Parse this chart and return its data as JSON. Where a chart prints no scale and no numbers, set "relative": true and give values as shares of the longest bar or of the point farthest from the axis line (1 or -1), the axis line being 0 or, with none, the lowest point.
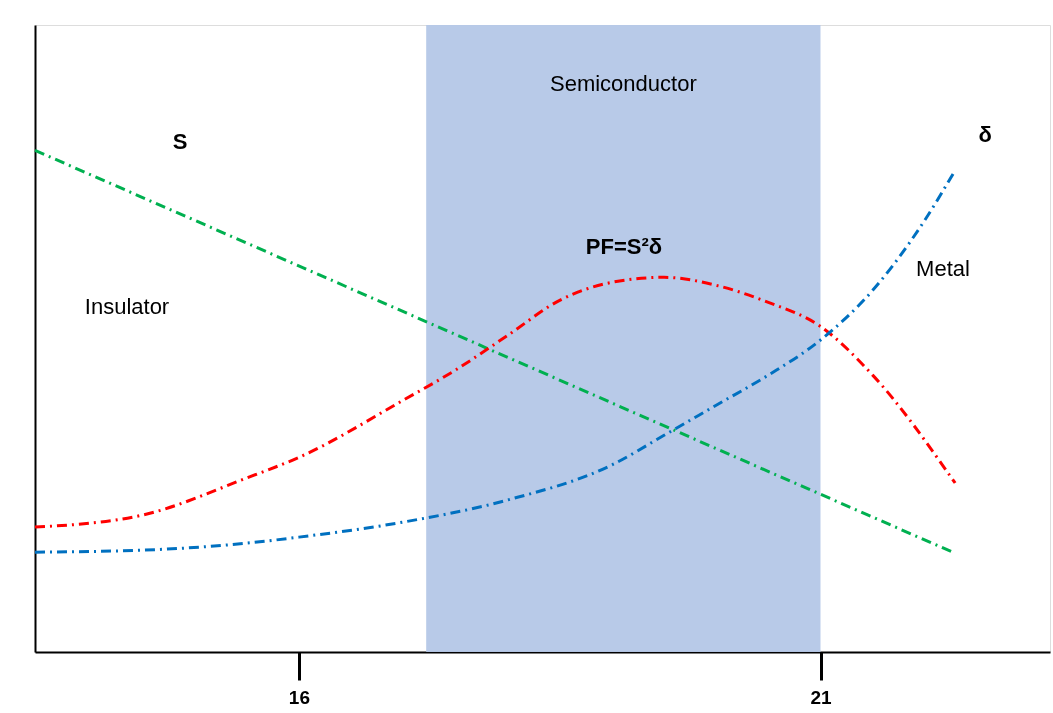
{
  "chart_data": {
    "type": "line",
    "relative": true,
    "xlim": [
      13.47,
      23.2
    ],
    "xticks": [
      16,
      21
    ],
    "grid": false,
    "marker": "none",
    "line_style": "dashed",
    "tick_labels": "x",
    "series": [
      {
        "name": "S",
        "color": "#00b050",
        "x": [
          13.47,
          22.29
        ],
        "values": [
          1.0,
          0.197
        ]
      },
      {
        "name": "PF=S²δ",
        "color": "#ff0000",
        "x": [
          13.47,
          14.5,
          15.5,
          16,
          17,
          17.5,
          18,
          18.5,
          19,
          19.5,
          20,
          20.5,
          21,
          21.5,
          22.29
        ],
        "values": [
          0.249,
          0.273,
          0.347,
          0.388,
          0.502,
          0.562,
          0.631,
          0.701,
          0.737,
          0.747,
          0.731,
          0.697,
          0.649,
          0.552,
          0.337
        ]
      },
      {
        "name": "δ",
        "color": "#0070c0",
        "x": [
          13.47,
          14.5,
          15.5,
          16,
          17,
          18,
          19,
          19.5,
          20,
          20.5,
          21,
          21.5,
          22,
          22.29
        ],
        "values": [
          0.199,
          0.203,
          0.217,
          0.229,
          0.259,
          0.303,
          0.373,
          0.432,
          0.492,
          0.552,
          0.622,
          0.721,
          0.861,
          0.96
        ]
      }
    ],
    "bands": [
      {
        "axis": "x",
        "from": 17.22,
        "to": 21,
        "label": "Semiconductor",
        "color": "#b4c7e7"
      }
    ],
    "annotations": [
      "Insulator",
      "Metal"
    ]
  }
}
